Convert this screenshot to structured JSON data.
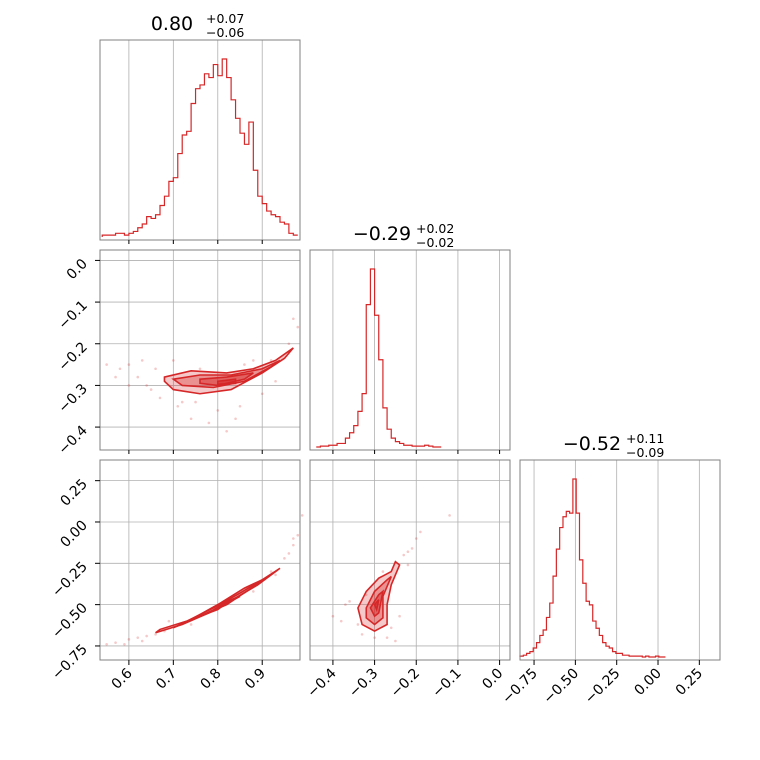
{
  "chart_data": {
    "type": "corner",
    "colors": {
      "line": "#d62728",
      "fill": "#f2b8b8",
      "grid": "#b0b0b0",
      "frame": "#808080"
    },
    "grid": true,
    "parameters": [
      {
        "median": "0.80",
        "plus": "+0.07",
        "minus": "−0.06",
        "range": [
          0.535,
          0.985
        ]
      },
      {
        "median": "−0.29",
        "plus": "+0.02",
        "minus": "−0.02",
        "range": [
          -0.455,
          0.025
        ]
      },
      {
        "median": "−0.52",
        "plus": "+0.11",
        "minus": "−0.09",
        "range": [
          -0.835,
          0.375
        ]
      }
    ],
    "ticks": [
      {
        "values": [
          0.6,
          0.7,
          0.8,
          0.9
        ],
        "labels": [
          "0.6",
          "0.7",
          "0.8",
          "0.9"
        ]
      },
      {
        "values": [
          -0.4,
          -0.3,
          -0.2,
          -0.1,
          0.0
        ],
        "labels": [
          "−0.4",
          "−0.3",
          "−0.2",
          "−0.1",
          "0.0"
        ]
      },
      {
        "values": [
          -0.75,
          -0.5,
          -0.25,
          0.0,
          0.25
        ],
        "labels": [
          "−0.75",
          "−0.50",
          "−0.25",
          "0.00",
          "0.25"
        ]
      }
    ],
    "histograms": [
      {
        "x": [
          0.545,
          0.555,
          0.565,
          0.575,
          0.585,
          0.595,
          0.605,
          0.615,
          0.625,
          0.635,
          0.645,
          0.655,
          0.665,
          0.675,
          0.685,
          0.695,
          0.705,
          0.715,
          0.725,
          0.735,
          0.745,
          0.755,
          0.765,
          0.775,
          0.785,
          0.795,
          0.805,
          0.815,
          0.825,
          0.835,
          0.845,
          0.855,
          0.865,
          0.875,
          0.885,
          0.895,
          0.905,
          0.915,
          0.925,
          0.935,
          0.945,
          0.955,
          0.965,
          0.975
        ],
        "y": [
          0.01,
          0.01,
          0.01,
          0.02,
          0.02,
          0.01,
          0.02,
          0.03,
          0.05,
          0.07,
          0.11,
          0.1,
          0.12,
          0.17,
          0.22,
          0.3,
          0.32,
          0.45,
          0.55,
          0.57,
          0.72,
          0.8,
          0.82,
          0.88,
          0.86,
          0.93,
          0.87,
          0.96,
          0.86,
          0.74,
          0.64,
          0.56,
          0.5,
          0.62,
          0.36,
          0.22,
          0.18,
          0.14,
          0.12,
          0.11,
          0.08,
          0.07,
          0.02,
          0.01
        ]
      },
      {
        "x": [
          -0.435,
          -0.425,
          -0.415,
          -0.405,
          -0.395,
          -0.385,
          -0.375,
          -0.365,
          -0.355,
          -0.345,
          -0.335,
          -0.325,
          -0.315,
          -0.305,
          -0.295,
          -0.285,
          -0.275,
          -0.265,
          -0.255,
          -0.245,
          -0.235,
          -0.225,
          -0.215,
          -0.205,
          -0.195,
          -0.185,
          -0.175,
          -0.165,
          -0.155,
          -0.145
        ],
        "y": [
          0.0,
          0.005,
          0.005,
          0.01,
          0.01,
          0.02,
          0.02,
          0.05,
          0.08,
          0.12,
          0.2,
          0.3,
          0.8,
          1.0,
          0.74,
          0.49,
          0.22,
          0.1,
          0.05,
          0.03,
          0.02,
          0.01,
          0.01,
          0.005,
          0.005,
          0.005,
          0.01,
          0.005,
          0.0,
          0.0
        ]
      },
      {
        "x": [
          -0.825,
          -0.805,
          -0.785,
          -0.765,
          -0.745,
          -0.725,
          -0.705,
          -0.685,
          -0.665,
          -0.645,
          -0.625,
          -0.605,
          -0.585,
          -0.565,
          -0.545,
          -0.525,
          -0.505,
          -0.485,
          -0.465,
          -0.445,
          -0.425,
          -0.405,
          -0.385,
          -0.365,
          -0.345,
          -0.325,
          -0.305,
          -0.285,
          -0.265,
          -0.245,
          -0.225,
          -0.205,
          -0.185,
          -0.165,
          -0.145,
          -0.125,
          -0.105,
          -0.085,
          -0.065,
          -0.045,
          -0.025,
          -0.005,
          0.015,
          0.035
        ],
        "y": [
          0.005,
          0.01,
          0.02,
          0.03,
          0.05,
          0.08,
          0.12,
          0.15,
          0.22,
          0.3,
          0.45,
          0.6,
          0.72,
          0.78,
          0.81,
          0.8,
          0.99,
          0.8,
          0.54,
          0.41,
          0.31,
          0.29,
          0.2,
          0.16,
          0.12,
          0.08,
          0.06,
          0.05,
          0.03,
          0.02,
          0.02,
          0.01,
          0.01,
          0.005,
          0.005,
          0.005,
          0.005,
          0.0,
          0.005,
          0.0,
          0.0,
          0.005,
          0.0,
          0.0
        ]
      }
    ],
    "pairs": [
      {
        "ix": 0,
        "iy": 1,
        "contours": [
          [
            [
              0.68,
              -0.28
            ],
            [
              0.74,
              -0.265
            ],
            [
              0.82,
              -0.27
            ],
            [
              0.88,
              -0.26
            ],
            [
              0.93,
              -0.24
            ],
            [
              0.97,
              -0.21
            ],
            [
              0.95,
              -0.235
            ],
            [
              0.9,
              -0.27
            ],
            [
              0.83,
              -0.31
            ],
            [
              0.76,
              -0.32
            ],
            [
              0.7,
              -0.31
            ],
            [
              0.68,
              -0.29
            ]
          ],
          [
            [
              0.7,
              -0.285
            ],
            [
              0.76,
              -0.275
            ],
            [
              0.83,
              -0.275
            ],
            [
              0.9,
              -0.26
            ],
            [
              0.94,
              -0.24
            ],
            [
              0.92,
              -0.255
            ],
            [
              0.86,
              -0.29
            ],
            [
              0.79,
              -0.305
            ],
            [
              0.72,
              -0.3
            ]
          ],
          [
            [
              0.76,
              -0.285
            ],
            [
              0.82,
              -0.28
            ],
            [
              0.88,
              -0.27
            ],
            [
              0.86,
              -0.285
            ],
            [
              0.8,
              -0.3
            ],
            [
              0.76,
              -0.295
            ]
          ],
          [
            [
              0.8,
              -0.29
            ],
            [
              0.84,
              -0.285
            ],
            [
              0.84,
              -0.295
            ],
            [
              0.8,
              -0.297
            ]
          ]
        ],
        "scatter": [
          [
            0.55,
            -0.25
          ],
          [
            0.58,
            -0.26
          ],
          [
            0.62,
            -0.28
          ],
          [
            0.64,
            -0.3
          ],
          [
            0.66,
            -0.26
          ],
          [
            0.6,
            -0.25
          ],
          [
            0.67,
            -0.33
          ],
          [
            0.72,
            -0.34
          ],
          [
            0.75,
            -0.34
          ],
          [
            0.8,
            -0.36
          ],
          [
            0.85,
            -0.35
          ],
          [
            0.9,
            -0.32
          ],
          [
            0.92,
            -0.24
          ],
          [
            0.96,
            -0.2
          ],
          [
            0.98,
            -0.16
          ],
          [
            0.97,
            -0.14
          ],
          [
            0.88,
            -0.24
          ],
          [
            0.7,
            -0.24
          ],
          [
            0.65,
            -0.31
          ],
          [
            0.78,
            -0.39
          ],
          [
            0.84,
            -0.38
          ],
          [
            0.93,
            -0.29
          ],
          [
            0.63,
            -0.24
          ],
          [
            0.57,
            -0.28
          ],
          [
            0.6,
            -0.3
          ],
          [
            0.71,
            -0.35
          ],
          [
            0.76,
            -0.26
          ],
          [
            0.86,
            -0.25
          ],
          [
            0.74,
            -0.38
          ],
          [
            0.82,
            -0.41
          ]
        ]
      },
      {
        "ix": 0,
        "iy": 2,
        "contours": [
          [
            [
              0.66,
              -0.67
            ],
            [
              0.72,
              -0.62
            ],
            [
              0.78,
              -0.55
            ],
            [
              0.84,
              -0.46
            ],
            [
              0.89,
              -0.38
            ],
            [
              0.93,
              -0.3
            ],
            [
              0.94,
              -0.28
            ],
            [
              0.9,
              -0.35
            ],
            [
              0.85,
              -0.43
            ],
            [
              0.79,
              -0.52
            ],
            [
              0.73,
              -0.6
            ],
            [
              0.67,
              -0.65
            ]
          ],
          [
            [
              0.7,
              -0.64
            ],
            [
              0.76,
              -0.57
            ],
            [
              0.82,
              -0.5
            ],
            [
              0.87,
              -0.41
            ],
            [
              0.9,
              -0.35
            ],
            [
              0.86,
              -0.4
            ],
            [
              0.8,
              -0.5
            ],
            [
              0.74,
              -0.59
            ]
          ],
          [
            [
              0.76,
              -0.57
            ],
            [
              0.8,
              -0.52
            ],
            [
              0.85,
              -0.45
            ],
            [
              0.82,
              -0.48
            ],
            [
              0.78,
              -0.55
            ]
          ],
          [
            [
              0.78,
              -0.55
            ],
            [
              0.81,
              -0.51
            ],
            [
              0.8,
              -0.53
            ]
          ]
        ],
        "scatter": [
          [
            0.55,
            -0.74
          ],
          [
            0.57,
            -0.73
          ],
          [
            0.6,
            -0.71
          ],
          [
            0.62,
            -0.7
          ],
          [
            0.64,
            -0.69
          ],
          [
            0.66,
            -0.68
          ],
          [
            0.68,
            -0.66
          ],
          [
            0.95,
            -0.22
          ],
          [
            0.96,
            -0.19
          ],
          [
            0.97,
            -0.14
          ],
          [
            0.97,
            -0.1
          ],
          [
            0.98,
            -0.08
          ],
          [
            0.99,
            0.04
          ],
          [
            0.93,
            -0.32
          ],
          [
            0.69,
            -0.6
          ],
          [
            0.74,
            -0.62
          ],
          [
            0.88,
            -0.42
          ],
          [
            0.63,
            -0.72
          ],
          [
            0.59,
            -0.74
          ],
          [
            0.92,
            -0.3
          ]
        ]
      },
      {
        "ix": 1,
        "iy": 2,
        "contours": [
          [
            [
              -0.34,
              -0.52
            ],
            [
              -0.32,
              -0.42
            ],
            [
              -0.29,
              -0.34
            ],
            [
              -0.26,
              -0.3
            ],
            [
              -0.25,
              -0.24
            ],
            [
              -0.24,
              -0.26
            ],
            [
              -0.26,
              -0.38
            ],
            [
              -0.27,
              -0.5
            ],
            [
              -0.27,
              -0.62
            ],
            [
              -0.3,
              -0.66
            ],
            [
              -0.33,
              -0.62
            ]
          ],
          [
            [
              -0.32,
              -0.52
            ],
            [
              -0.3,
              -0.42
            ],
            [
              -0.27,
              -0.35
            ],
            [
              -0.26,
              -0.33
            ],
            [
              -0.28,
              -0.45
            ],
            [
              -0.28,
              -0.58
            ],
            [
              -0.3,
              -0.62
            ],
            [
              -0.32,
              -0.58
            ]
          ],
          [
            [
              -0.31,
              -0.52
            ],
            [
              -0.29,
              -0.44
            ],
            [
              -0.28,
              -0.42
            ],
            [
              -0.29,
              -0.55
            ],
            [
              -0.3,
              -0.57
            ]
          ],
          [
            [
              -0.3,
              -0.5
            ],
            [
              -0.29,
              -0.47
            ],
            [
              -0.295,
              -0.53
            ]
          ]
        ],
        "scatter": [
          [
            -0.4,
            -0.57
          ],
          [
            -0.38,
            -0.6
          ],
          [
            -0.37,
            -0.5
          ],
          [
            -0.36,
            -0.48
          ],
          [
            -0.34,
            -0.62
          ],
          [
            -0.33,
            -0.68
          ],
          [
            -0.3,
            -0.7
          ],
          [
            -0.27,
            -0.7
          ],
          [
            -0.26,
            -0.64
          ],
          [
            -0.24,
            -0.57
          ],
          [
            -0.23,
            -0.2
          ],
          [
            -0.22,
            -0.18
          ],
          [
            -0.21,
            -0.16
          ],
          [
            -0.2,
            -0.1
          ],
          [
            -0.19,
            -0.06
          ],
          [
            -0.12,
            0.04
          ],
          [
            -0.28,
            -0.3
          ],
          [
            -0.32,
            -0.44
          ],
          [
            -0.25,
            -0.72
          ],
          [
            -0.22,
            -0.26
          ]
        ]
      }
    ]
  }
}
